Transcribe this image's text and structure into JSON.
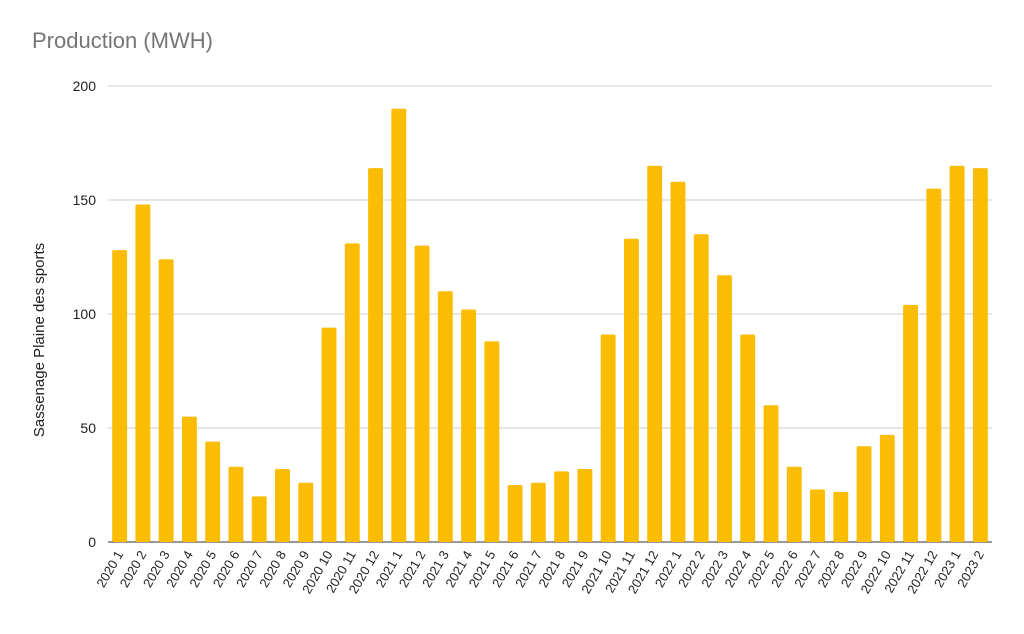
{
  "chart_data": {
    "type": "bar",
    "title": "Production (MWH)",
    "xlabel": "",
    "ylabel": "Sassenage Plaine des sports",
    "ylim": [
      0,
      200
    ],
    "yticks": [
      0,
      50,
      100,
      150,
      200
    ],
    "grid": true,
    "legend": "none",
    "bar_color": "#fbbc04",
    "categories": [
      "2020 1",
      "2020 2",
      "2020 3",
      "2020 4",
      "2020 5",
      "2020 6",
      "2020 7",
      "2020 8",
      "2020 9",
      "2020 10",
      "2020 11",
      "2020 12",
      "2021 1",
      "2021 2",
      "2021 3",
      "2021 4",
      "2021 5",
      "2021 6",
      "2021 7",
      "2021 8",
      "2021 9",
      "2021 10",
      "2021 11",
      "2021 12",
      "2022 1",
      "2022 2",
      "2022 3",
      "2022 4",
      "2022 5",
      "2022 6",
      "2022 7",
      "2022 8",
      "2022 9",
      "2022 10",
      "2022 11",
      "2022 12",
      "2023 1",
      "2023 2"
    ],
    "values": [
      128,
      148,
      124,
      55,
      44,
      33,
      20,
      32,
      26,
      94,
      131,
      164,
      190,
      130,
      110,
      102,
      88,
      25,
      26,
      31,
      32,
      91,
      133,
      165,
      158,
      135,
      117,
      91,
      60,
      33,
      23,
      22,
      42,
      47,
      104,
      155,
      165,
      164
    ]
  }
}
